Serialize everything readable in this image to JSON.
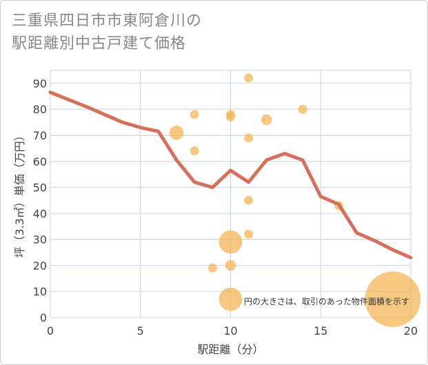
{
  "title": "三重県四日市市東阿倉川の\n駅距離別中古戸建て価格",
  "chart_data": {
    "type": "scatter+line",
    "title": "三重県四日市市東阿倉川の駅距離別中古戸建て価格",
    "xlabel": "駅距離（分）",
    "ylabel": "坪（3.3㎡）単価（万円）",
    "xlim": [
      0,
      20
    ],
    "ylim": [
      0,
      95
    ],
    "xticks": [
      0,
      5,
      10,
      15,
      20
    ],
    "yticks": [
      0,
      10,
      20,
      30,
      40,
      50,
      60,
      70,
      80,
      90
    ],
    "grid": true,
    "annotation": "円の大きさは、取引のあった物件面積を示す",
    "colors": {
      "line": "#d4705c",
      "bubble": "#f3b557",
      "grid": "#c7d3e3"
    },
    "trend_line": {
      "x": [
        0,
        2,
        4,
        5,
        6,
        7,
        8,
        9,
        10,
        11,
        12,
        13,
        14,
        15,
        16,
        17,
        18,
        19,
        20
      ],
      "y": [
        86.5,
        81,
        75,
        73,
        71.5,
        60.5,
        52,
        50,
        56.5,
        52,
        60.5,
        63,
        60.5,
        46.5,
        43.5,
        32.5,
        29.5,
        26,
        23
      ]
    },
    "bubbles": [
      {
        "x": 7,
        "y": 71,
        "size": 1.6
      },
      {
        "x": 8,
        "y": 78,
        "size": 1
      },
      {
        "x": 8,
        "y": 64,
        "size": 1
      },
      {
        "x": 9,
        "y": 19,
        "size": 1
      },
      {
        "x": 10,
        "y": 78,
        "size": 1
      },
      {
        "x": 10,
        "y": 77,
        "size": 1
      },
      {
        "x": 10,
        "y": 29,
        "size": 2.6
      },
      {
        "x": 10,
        "y": 20,
        "size": 1.2
      },
      {
        "x": 10,
        "y": 7,
        "size": 2.6
      },
      {
        "x": 11,
        "y": 92,
        "size": 1
      },
      {
        "x": 11,
        "y": 69,
        "size": 1
      },
      {
        "x": 11,
        "y": 45,
        "size": 1
      },
      {
        "x": 11,
        "y": 32,
        "size": 1
      },
      {
        "x": 12,
        "y": 76,
        "size": 1.2
      },
      {
        "x": 14,
        "y": 80,
        "size": 1
      },
      {
        "x": 16,
        "y": 43,
        "size": 1
      },
      {
        "x": 19,
        "y": 7,
        "size": 6.2
      }
    ]
  }
}
